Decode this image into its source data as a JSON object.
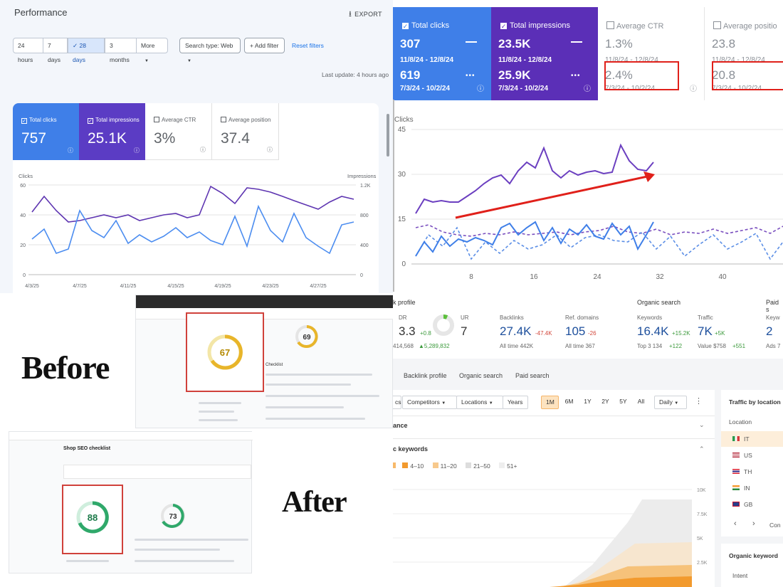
{
  "gsc_performance": {
    "title": "Performance",
    "export_label": "EXPORT",
    "date_ranges": [
      "24 hours",
      "7 days",
      "28 days",
      "3 months",
      "More"
    ],
    "active_range": "28 days",
    "search_type": "Search type: Web",
    "add_filter": "Add filter",
    "reset_filters": "Reset filters",
    "last_update": "Last update: 4 hours ago",
    "cards": [
      {
        "label": "Total clicks",
        "value": "757",
        "checked": true,
        "color": "#1a73e8"
      },
      {
        "label": "Total impressions",
        "value": "25.1K",
        "checked": true,
        "color": "#5e35b1"
      },
      {
        "label": "Average CTR",
        "value": "3%",
        "checked": false
      },
      {
        "label": "Average position",
        "value": "37.4",
        "checked": false
      }
    ],
    "chart": {
      "left_axis_label": "Clicks",
      "right_axis_label": "Impressions",
      "left_ticks": [
        "60",
        "40",
        "20",
        "0"
      ],
      "right_ticks": [
        "1.2K",
        "800",
        "400",
        "0"
      ],
      "x_ticks": [
        "4/3/25",
        "4/7/25",
        "4/11/25",
        "4/15/25",
        "4/19/25",
        "4/23/25",
        "4/27/25"
      ]
    }
  },
  "gsc_compare": {
    "cards": [
      {
        "label": "Total clicks",
        "v1": "307",
        "d1": "11/8/24 - 12/8/24",
        "v2": "619",
        "d2": "7/3/24 - 10/2/24",
        "checked": true
      },
      {
        "label": "Total impressions",
        "v1": "23.5K",
        "d1": "11/8/24 - 12/8/24",
        "v2": "25.9K",
        "d2": "7/3/24 - 10/2/24",
        "checked": true
      },
      {
        "label": "Average CTR",
        "v1": "1.3%",
        "d1": "11/8/24 - 12/8/24",
        "v2": "2.4%",
        "d2": "7/3/24 - 10/2/24",
        "checked": false
      },
      {
        "label": "Average positio",
        "v1": "23.8",
        "d1": "11/8/24 - 12/8/24",
        "v2": "20.8",
        "d2": "7/3/24 - 10/2/24",
        "checked": false
      }
    ],
    "chart": {
      "axis_label": "Clicks",
      "y_ticks": [
        "45",
        "30",
        "15",
        "0"
      ],
      "x_ticks": [
        "8",
        "16",
        "24",
        "32",
        "40"
      ]
    }
  },
  "before_after": {
    "before_label": "Before",
    "after_label": "After",
    "before_score": "67",
    "before_score_2": "69",
    "after_score": "88",
    "after_score_2": "73",
    "checklist_title": "Shop SEO checklist",
    "checklist_label": "Checklist"
  },
  "ahrefs": {
    "sections": {
      "link": "k profile",
      "organic": "Organic search",
      "paid": "Paid s"
    },
    "metrics": [
      {
        "label": "DR",
        "value": "3.3",
        "delta": "+0.8",
        "sub": "414,568",
        "sub_delta": "5,289,832"
      },
      {
        "label": "UR",
        "value": "7"
      },
      {
        "label": "Backlinks",
        "value": "27.4K",
        "delta": "-47.4K",
        "sub": "All time 442K"
      },
      {
        "label": "Ref. domains",
        "value": "105",
        "delta": "-26",
        "sub": "All time 367"
      },
      {
        "label": "Keywords",
        "value": "16.4K",
        "delta": "+15.2K",
        "sub": "Top 3 134",
        "sub_delta": "+122"
      },
      {
        "label": "Traffic",
        "value": "7K",
        "delta": "+5K",
        "sub": "Value $758",
        "sub_delta": "+551"
      },
      {
        "label": "Keyw",
        "value": "2",
        "sub": "Ads 7"
      }
    ],
    "tabs": [
      "Backlink profile",
      "Organic search",
      "Paid search"
    ],
    "toolbar": [
      "cs",
      "Competitors",
      "Locations",
      "Years"
    ],
    "periods": [
      "1M",
      "6M",
      "1Y",
      "2Y",
      "5Y",
      "All"
    ],
    "active_period": "1M",
    "granularity": "Daily",
    "section_performance": "ance",
    "section_keywords": "c keywords",
    "kw_ranges": [
      "4–10",
      "11–20",
      "21–50",
      "51+"
    ],
    "y_ticks": [
      "10K",
      "7.5K",
      "5K",
      "2.5K"
    ],
    "traffic_by_location": {
      "title": "Traffic by location",
      "column": "Location",
      "rows": [
        "IT",
        "US",
        "TH",
        "IN",
        "GB"
      ],
      "more": "Con"
    },
    "organic_keywords": {
      "title": "Organic keyword",
      "column": "Intent"
    }
  }
}
